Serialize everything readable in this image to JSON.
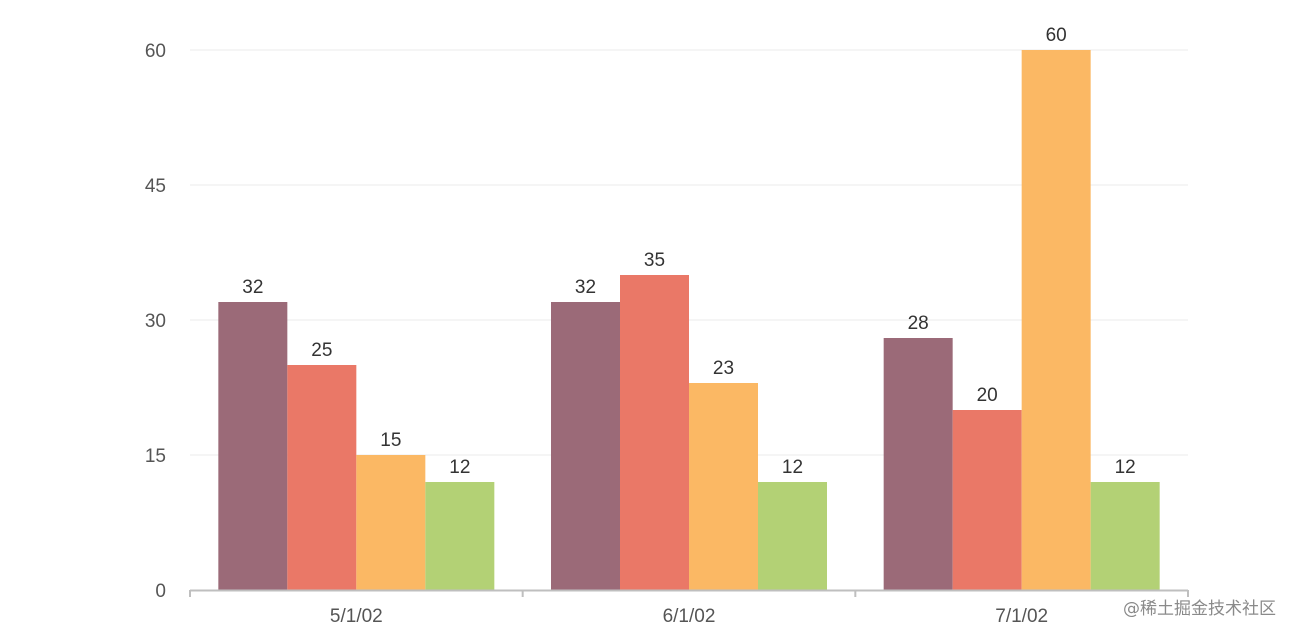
{
  "chart_data": {
    "type": "bar",
    "categories": [
      "5/1/02",
      "6/1/02",
      "7/1/02"
    ],
    "series": [
      {
        "values": [
          32,
          32,
          28
        ],
        "color": "#9b6a78"
      },
      {
        "values": [
          25,
          35,
          20
        ],
        "color": "#ea7867"
      },
      {
        "values": [
          15,
          23,
          60
        ],
        "color": "#fbb864"
      },
      {
        "values": [
          12,
          12,
          12
        ],
        "color": "#b3d175"
      }
    ],
    "title": "",
    "xlabel": "",
    "ylabel": "",
    "ylim": [
      0,
      60
    ],
    "yticks": [
      "0",
      "15",
      "30",
      "45",
      "60"
    ],
    "grid": true,
    "legend": "none",
    "data_labels": true
  },
  "watermark": "@稀土掘金技术社区",
  "colors": {
    "gridline": "#ebebeb",
    "axis": "#bfbfbf"
  }
}
